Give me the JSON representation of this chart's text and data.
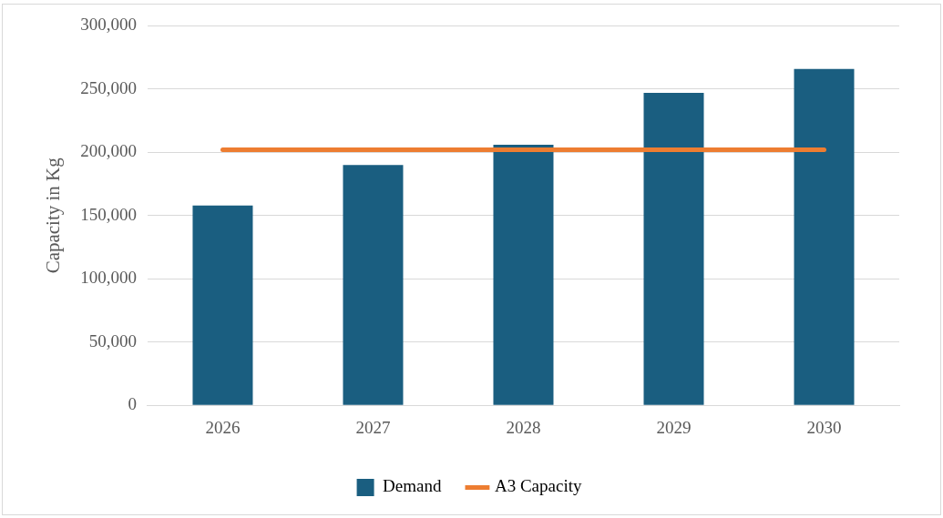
{
  "chart_data": {
    "type": "bar",
    "ylabel": "Capacity in Kg",
    "categories": [
      "2026",
      "2027",
      "2028",
      "2029",
      "2030"
    ],
    "series": [
      {
        "name": "Demand",
        "color": "#1a5e80",
        "values": [
          158000,
          190000,
          206000,
          247000,
          266000
        ]
      },
      {
        "name": "A3 Capacity",
        "type": "line",
        "color": "#ed7d31",
        "values": [
          202000,
          202000,
          202000,
          202000,
          202000
        ]
      }
    ],
    "ylim": [
      0,
      300000
    ],
    "yticks": [
      {
        "value": 0,
        "label": "0"
      },
      {
        "value": 50000,
        "label": "50,000"
      },
      {
        "value": 100000,
        "label": "100,000"
      },
      {
        "value": 150000,
        "label": "150,000"
      },
      {
        "value": 200000,
        "label": "200,000"
      },
      {
        "value": 250000,
        "label": "250,000"
      },
      {
        "value": 300000,
        "label": "300,000"
      }
    ],
    "grid": "y",
    "legend": "bottom"
  }
}
